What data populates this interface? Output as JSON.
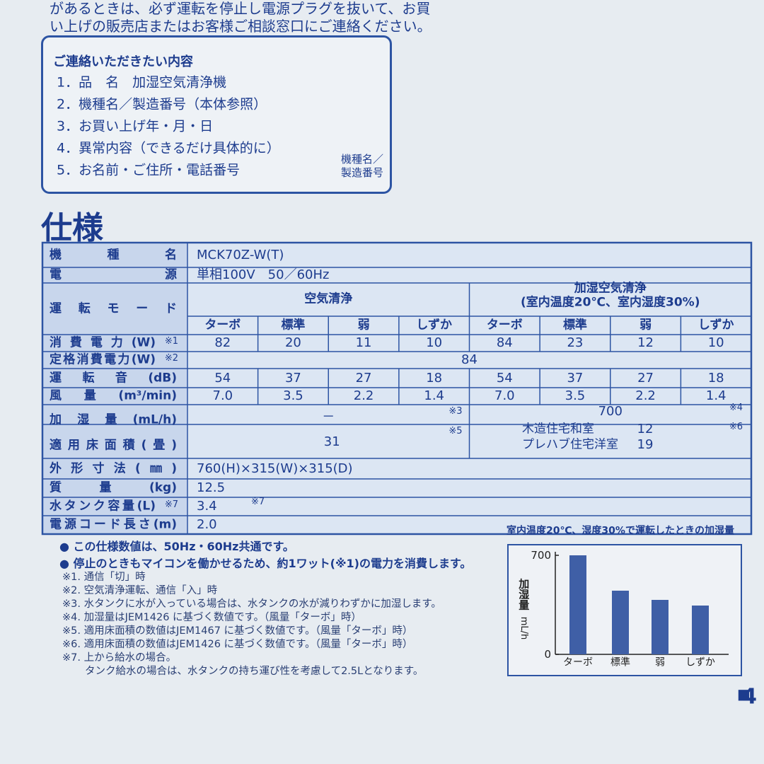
{
  "top_text": [
    "があるときは、必ず運転を停止し電源プラグを抜いて、お買",
    "い上げの販売店またはお客様ご相談窓口にご連絡ください。"
  ],
  "contact_box": {
    "title": "ご連絡いただきたい内容",
    "items": [
      "1．品　名　加湿空気清浄機",
      "2．機種名／製造番号（本体参照）",
      "3．お買い上げ年・月・日",
      "4．異常内容（できるだけ具体的に）",
      "5．お名前・ご住所・電話番号"
    ],
    "figure_label": [
      "機種名／",
      "製造番号"
    ]
  },
  "section_title": "仕様",
  "spec_table": {
    "model": {
      "label": "機種名",
      "value": "MCK70Z-W(T)"
    },
    "power_source": {
      "label": "電源",
      "value": "単相100V　50／60Hz"
    },
    "mode": {
      "label": "運転モード",
      "groups": [
        [
          "空気清浄"
        ],
        [
          "加湿空気清浄",
          "(室内温度20℃、室内湿度30%)"
        ]
      ],
      "modes": [
        "ターボ",
        "標準",
        "弱",
        "しずか",
        "ターボ",
        "標準",
        "弱",
        "しずか"
      ]
    },
    "power_consumption": {
      "label": "消費電力(W)",
      "note": "※1",
      "values": [
        "82",
        "20",
        "11",
        "10",
        "84",
        "23",
        "12",
        "10"
      ]
    },
    "rated_power": {
      "label": "定格消費電力(W)",
      "note": "※2",
      "value": "84"
    },
    "noise": {
      "label": "運転音(dB)",
      "values": [
        "54",
        "37",
        "27",
        "18",
        "54",
        "37",
        "27",
        "18"
      ]
    },
    "airflow": {
      "label": "風量(m³/min)",
      "values": [
        "7.0",
        "3.5",
        "2.2",
        "1.4",
        "7.0",
        "3.5",
        "2.2",
        "1.4"
      ]
    },
    "humidification": {
      "label": "加湿量(mL/h)",
      "air_clean": "－",
      "air_clean_note": "※3",
      "humidify": "700",
      "humidify_note": "※4"
    },
    "floor_area": {
      "label": "適用床面積(畳)",
      "air_clean": "31",
      "air_clean_note": "※5",
      "humidify": [
        {
          "room": "木造住宅和室",
          "value": "12"
        },
        {
          "room": "プレハブ住宅洋室",
          "value": "19"
        }
      ],
      "humidify_note": "※6"
    },
    "dimensions": {
      "label": "外形寸法(㎜)",
      "value": "760(H)×315(W)×315(D)"
    },
    "mass": {
      "label": "質量(kg)",
      "value": "12.5"
    },
    "tank": {
      "label": "水タンク容量(L)",
      "value": "3.4",
      "note": "※7"
    },
    "cord": {
      "label": "電源コード長さ(m)",
      "value": "2.0"
    }
  },
  "notes": [
    "● この仕様数値は、50Hz・60Hz共通です。",
    "● 停止のときもマイコンを働かせるため、約1ワット(※1)の電力を消費します。"
  ],
  "footnotes": [
    "※1. 通信「切」時",
    "※2. 空気清浄運転、通信「入」時",
    "※3. 水タンクに水が入っている場合は、水タンクの水が減りわずかに加湿します。",
    "※4. 加湿量はJEM1426 に基づく数値です。（風量「ターボ」時）",
    "※5. 適用床面積の数値はJEM1467 に基づく数値です。（風量「ターボ」時）",
    "※6. 適用床面積の数値はJEM1426 に基づく数値です。（風量「ターボ」時）",
    "※7. 上から給水の場合。",
    "タンク給水の場合は、水タンクの持ち運び性を考慮して2.5Lとなります。"
  ],
  "chart_data": {
    "type": "bar",
    "title": "室内温度20℃、湿度30%で運転したときの加湿量",
    "y_label": "加湿量",
    "y_unit": "mL/h",
    "categories": [
      "ターボ",
      "標準",
      "弱",
      "しずか"
    ],
    "values": [
      700,
      450,
      385,
      345
    ],
    "color": "#3f5fa6",
    "ylim": [
      0,
      700
    ],
    "yticks": [
      0,
      700
    ]
  },
  "page_number": "4"
}
